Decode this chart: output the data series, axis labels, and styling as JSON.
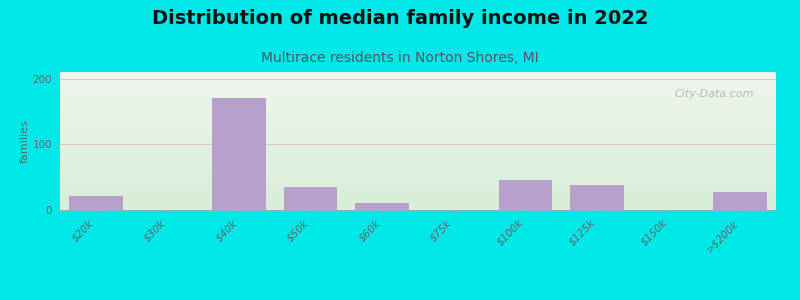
{
  "title": "Distribution of median family income in 2022",
  "subtitle": "Multirace residents in Norton Shores, MI",
  "ylabel": "families",
  "categories": [
    "$20k",
    "$30k",
    "$40k",
    "$50k",
    "$60k",
    "$75k",
    "$100k",
    "$125k",
    "$150k",
    ">$200k"
  ],
  "values": [
    22,
    0,
    170,
    35,
    10,
    0,
    45,
    38,
    0,
    28
  ],
  "bar_color": "#b8a0cc",
  "bg_color": "#00e8e8",
  "plot_bg_top_color": "#f0f5ee",
  "plot_bg_bottom_color": "#d8eed8",
  "yticks": [
    0,
    100,
    200
  ],
  "ylim": [
    0,
    210
  ],
  "title_fontsize": 14,
  "subtitle_fontsize": 10,
  "ylabel_fontsize": 8,
  "tick_fontsize": 7.5,
  "subtitle_color": "#555566",
  "title_color": "#111111",
  "tick_color": "#666666",
  "watermark": "City-Data.com",
  "watermark_color": "#aaaaaa"
}
